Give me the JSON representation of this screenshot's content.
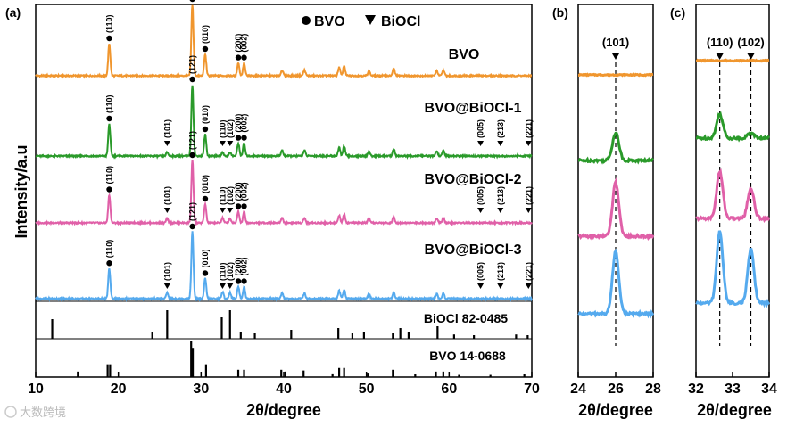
{
  "chart_data": [
    {
      "panel_label": "(a)",
      "type": "line",
      "title": "",
      "xlabel": "2θ/degree",
      "ylabel": "Intensity/a.u",
      "xlim": [
        10,
        70
      ],
      "xticks": [
        "10",
        "20",
        "30",
        "40",
        "50",
        "60",
        "70"
      ],
      "legend": {
        "items": [
          {
            "symbol": "●",
            "label": "BVO"
          },
          {
            "symbol": "▼",
            "label": "BiOCl"
          }
        ],
        "placement": "top"
      },
      "series": [
        {
          "name": "BVO",
          "color": "#f0962e",
          "peaks": [
            {
              "x": 18.9,
              "h": 0.45
            },
            {
              "x": 28.95,
              "h": 1.0
            },
            {
              "x": 30.5,
              "h": 0.3
            },
            {
              "x": 34.5,
              "h": 0.18
            },
            {
              "x": 35.2,
              "h": 0.18
            },
            {
              "x": 39.8,
              "h": 0.08
            },
            {
              "x": 42.5,
              "h": 0.08
            },
            {
              "x": 46.7,
              "h": 0.12
            },
            {
              "x": 47.3,
              "h": 0.14
            },
            {
              "x": 50.3,
              "h": 0.07
            },
            {
              "x": 53.3,
              "h": 0.1
            },
            {
              "x": 58.5,
              "h": 0.07
            },
            {
              "x": 59.3,
              "h": 0.08
            }
          ],
          "annotations": [
            {
              "x": 18.9,
              "label": "(110)",
              "marker": "●"
            },
            {
              "x": 28.95,
              "label": "(121)",
              "marker": "●"
            },
            {
              "x": 30.5,
              "label": "(010)",
              "marker": "●"
            },
            {
              "x": 34.5,
              "label": "(200)",
              "marker": "●"
            },
            {
              "x": 35.2,
              "label": "(002)",
              "marker": "●"
            }
          ]
        },
        {
          "name": "BVO@BiOCl-1",
          "color": "#2a9a2a",
          "peaks": [
            {
              "x": 18.9,
              "h": 0.45
            },
            {
              "x": 25.9,
              "h": 0.05
            },
            {
              "x": 28.95,
              "h": 1.0
            },
            {
              "x": 30.5,
              "h": 0.3
            },
            {
              "x": 32.6,
              "h": 0.05
            },
            {
              "x": 33.5,
              "h": 0.05
            },
            {
              "x": 34.5,
              "h": 0.18
            },
            {
              "x": 35.2,
              "h": 0.18
            },
            {
              "x": 39.8,
              "h": 0.08
            },
            {
              "x": 42.5,
              "h": 0.08
            },
            {
              "x": 46.7,
              "h": 0.12
            },
            {
              "x": 47.3,
              "h": 0.14
            },
            {
              "x": 50.3,
              "h": 0.07
            },
            {
              "x": 53.3,
              "h": 0.1
            },
            {
              "x": 58.5,
              "h": 0.07
            },
            {
              "x": 59.3,
              "h": 0.08
            }
          ],
          "annotations": [
            {
              "x": 18.9,
              "label": "(110)",
              "marker": "●"
            },
            {
              "x": 25.9,
              "label": "(101)",
              "marker": "▼"
            },
            {
              "x": 28.95,
              "label": "(121)",
              "marker": "●"
            },
            {
              "x": 30.5,
              "label": "(010)",
              "marker": "●"
            },
            {
              "x": 32.6,
              "label": "(110)",
              "marker": "▼"
            },
            {
              "x": 33.5,
              "label": "(102)",
              "marker": "▼"
            },
            {
              "x": 34.5,
              "label": "(200)",
              "marker": "●"
            },
            {
              "x": 35.2,
              "label": "(002)",
              "marker": "●"
            },
            {
              "x": 63.8,
              "label": "(005)",
              "marker": "▼"
            },
            {
              "x": 66.2,
              "label": "(213)",
              "marker": "▼"
            },
            {
              "x": 69.6,
              "label": "(221)",
              "marker": "▼"
            }
          ]
        },
        {
          "name": "BVO@BiOCl-2",
          "color": "#e060a8",
          "peaks": [
            {
              "x": 18.9,
              "h": 0.45
            },
            {
              "x": 25.9,
              "h": 0.07
            },
            {
              "x": 28.95,
              "h": 1.0
            },
            {
              "x": 30.5,
              "h": 0.3
            },
            {
              "x": 32.6,
              "h": 0.08
            },
            {
              "x": 33.5,
              "h": 0.07
            },
            {
              "x": 34.5,
              "h": 0.18
            },
            {
              "x": 35.2,
              "h": 0.18
            },
            {
              "x": 39.8,
              "h": 0.08
            },
            {
              "x": 42.5,
              "h": 0.08
            },
            {
              "x": 46.7,
              "h": 0.12
            },
            {
              "x": 47.3,
              "h": 0.14
            },
            {
              "x": 50.3,
              "h": 0.07
            },
            {
              "x": 53.3,
              "h": 0.1
            },
            {
              "x": 58.5,
              "h": 0.07
            },
            {
              "x": 59.3,
              "h": 0.08
            }
          ],
          "annotations": [
            {
              "x": 18.9,
              "label": "(110)",
              "marker": "●"
            },
            {
              "x": 25.9,
              "label": "(101)",
              "marker": "▼"
            },
            {
              "x": 28.95,
              "label": "(121)",
              "marker": "●"
            },
            {
              "x": 30.5,
              "label": "(010)",
              "marker": "●"
            },
            {
              "x": 32.6,
              "label": "(110)",
              "marker": "▼"
            },
            {
              "x": 33.5,
              "label": "(102)",
              "marker": "▼"
            },
            {
              "x": 34.5,
              "label": "(200)",
              "marker": "●"
            },
            {
              "x": 35.2,
              "label": "(002)",
              "marker": "●"
            },
            {
              "x": 63.8,
              "label": "(005)",
              "marker": "▼"
            },
            {
              "x": 66.2,
              "label": "(213)",
              "marker": "▼"
            },
            {
              "x": 69.6,
              "label": "(221)",
              "marker": "▼"
            }
          ]
        },
        {
          "name": "BVO@BiOCl-3",
          "color": "#55aaee",
          "peaks": [
            {
              "x": 18.9,
              "h": 0.45
            },
            {
              "x": 25.9,
              "h": 0.09
            },
            {
              "x": 28.95,
              "h": 1.0
            },
            {
              "x": 30.5,
              "h": 0.3
            },
            {
              "x": 32.6,
              "h": 0.1
            },
            {
              "x": 33.5,
              "h": 0.09
            },
            {
              "x": 34.5,
              "h": 0.18
            },
            {
              "x": 35.2,
              "h": 0.18
            },
            {
              "x": 39.8,
              "h": 0.08
            },
            {
              "x": 42.5,
              "h": 0.08
            },
            {
              "x": 46.7,
              "h": 0.12
            },
            {
              "x": 47.3,
              "h": 0.14
            },
            {
              "x": 50.3,
              "h": 0.07
            },
            {
              "x": 53.3,
              "h": 0.1
            },
            {
              "x": 58.5,
              "h": 0.07
            },
            {
              "x": 59.3,
              "h": 0.08
            }
          ],
          "annotations": [
            {
              "x": 18.9,
              "label": "(110)",
              "marker": "●"
            },
            {
              "x": 25.9,
              "label": "(101)",
              "marker": "▼"
            },
            {
              "x": 28.95,
              "label": "(121)",
              "marker": "●"
            },
            {
              "x": 30.5,
              "label": "(010)",
              "marker": "●"
            },
            {
              "x": 32.6,
              "label": "(110)",
              "marker": "▼"
            },
            {
              "x": 33.5,
              "label": "(102)",
              "marker": "▼"
            },
            {
              "x": 34.5,
              "label": "(200)",
              "marker": "●"
            },
            {
              "x": 35.2,
              "label": "(002)",
              "marker": "●"
            },
            {
              "x": 63.8,
              "label": "(005)",
              "marker": "▼"
            },
            {
              "x": 66.2,
              "label": "(213)",
              "marker": "▼"
            },
            {
              "x": 69.6,
              "label": "(221)",
              "marker": "▼"
            }
          ]
        }
      ],
      "references": [
        {
          "name": "BiOCl 82-0485",
          "sticks": [
            {
              "x": 12.0,
              "h": 0.55
            },
            {
              "x": 24.1,
              "h": 0.2
            },
            {
              "x": 25.9,
              "h": 0.8
            },
            {
              "x": 32.5,
              "h": 0.6
            },
            {
              "x": 33.5,
              "h": 0.8
            },
            {
              "x": 34.8,
              "h": 0.2
            },
            {
              "x": 36.5,
              "h": 0.15
            },
            {
              "x": 40.9,
              "h": 0.25
            },
            {
              "x": 46.6,
              "h": 0.3
            },
            {
              "x": 48.3,
              "h": 0.15
            },
            {
              "x": 49.7,
              "h": 0.2
            },
            {
              "x": 53.2,
              "h": 0.15
            },
            {
              "x": 54.1,
              "h": 0.3
            },
            {
              "x": 55.1,
              "h": 0.2
            },
            {
              "x": 58.6,
              "h": 0.35
            },
            {
              "x": 60.6,
              "h": 0.12
            },
            {
              "x": 63.0,
              "h": 0.1
            },
            {
              "x": 68.1,
              "h": 0.12
            },
            {
              "x": 69.5,
              "h": 0.1
            }
          ]
        },
        {
          "name": "BVO 14-0688",
          "sticks": [
            {
              "x": 15.1,
              "h": 0.15
            },
            {
              "x": 18.7,
              "h": 0.35
            },
            {
              "x": 19.0,
              "h": 0.35
            },
            {
              "x": 28.8,
              "h": 1.0
            },
            {
              "x": 29.0,
              "h": 0.8
            },
            {
              "x": 30.6,
              "h": 0.35
            },
            {
              "x": 34.5,
              "h": 0.2
            },
            {
              "x": 35.2,
              "h": 0.2
            },
            {
              "x": 39.7,
              "h": 0.2
            },
            {
              "x": 40.2,
              "h": 0.15
            },
            {
              "x": 42.4,
              "h": 0.18
            },
            {
              "x": 45.9,
              "h": 0.1
            },
            {
              "x": 46.7,
              "h": 0.25
            },
            {
              "x": 47.3,
              "h": 0.25
            },
            {
              "x": 50.2,
              "h": 0.12
            },
            {
              "x": 53.2,
              "h": 0.2
            },
            {
              "x": 55.9,
              "h": 0.08
            },
            {
              "x": 58.4,
              "h": 0.15
            },
            {
              "x": 59.3,
              "h": 0.15
            },
            {
              "x": 61.2,
              "h": 0.06
            },
            {
              "x": 65.0,
              "h": 0.06
            },
            {
              "x": 69.1,
              "h": 0.08
            }
          ]
        }
      ]
    },
    {
      "panel_label": "(b)",
      "type": "line",
      "xlabel": "2θ/degree",
      "xlim": [
        24,
        28
      ],
      "xticks": [
        "24",
        "26",
        "28"
      ],
      "annotations": [
        {
          "x": 26,
          "label": "(101)",
          "marker": "▼"
        }
      ],
      "series": [
        {
          "name": "BVO",
          "peak_x": 26.0,
          "peak_h": 0.0
        },
        {
          "name": "BVO@BiOCl-1",
          "peak_x": 26.0,
          "peak_h": 0.45
        },
        {
          "name": "BVO@BiOCl-2",
          "peak_x": 26.0,
          "peak_h": 0.8
        },
        {
          "name": "BVO@BiOCl-3",
          "peak_x": 26.0,
          "peak_h": 1.0
        }
      ]
    },
    {
      "panel_label": "(c)",
      "type": "line",
      "xlabel": "2θ/degree",
      "xlim": [
        32,
        34
      ],
      "xticks": [
        "32",
        "33",
        "34"
      ],
      "annotations": [
        {
          "x": 32.65,
          "label": "(110)",
          "marker": "▼"
        },
        {
          "x": 33.5,
          "label": "(102)",
          "marker": "▼"
        }
      ],
      "series": [
        {
          "name": "BVO",
          "peak_x": [
            32.65,
            33.5
          ],
          "peak_h": [
            0.0,
            0.0
          ]
        },
        {
          "name": "BVO@BiOCl-1",
          "peak_x": [
            32.65,
            33.5
          ],
          "peak_h": [
            0.45,
            0.1
          ]
        },
        {
          "name": "BVO@BiOCl-2",
          "peak_x": [
            32.65,
            33.5
          ],
          "peak_h": [
            0.7,
            0.45
          ]
        },
        {
          "name": "BVO@BiOCl-3",
          "peak_x": [
            32.65,
            33.5
          ],
          "peak_h": [
            1.0,
            0.75
          ]
        }
      ]
    }
  ],
  "watermark": "大数跨境"
}
